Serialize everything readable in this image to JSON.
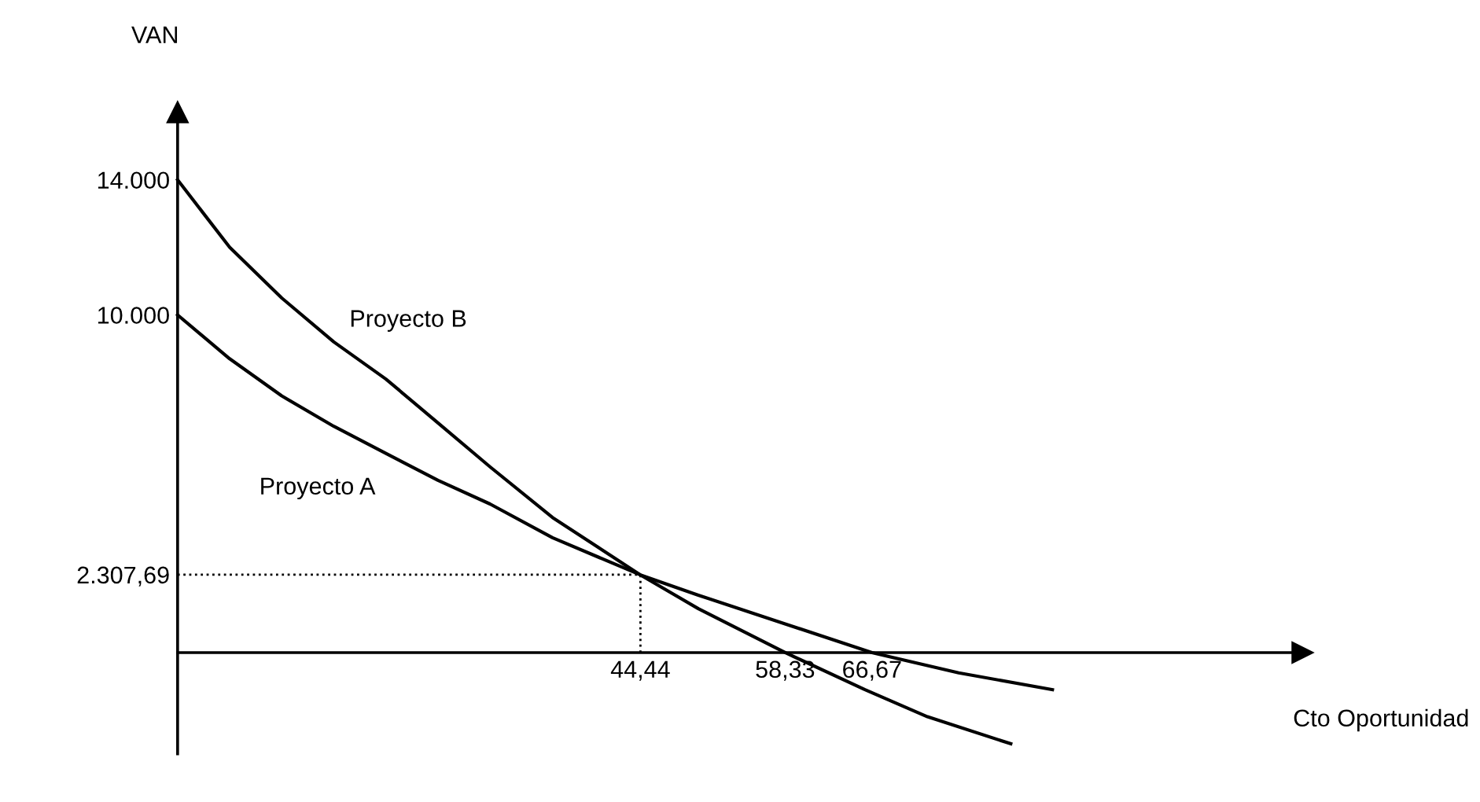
{
  "chart_data": {
    "type": "line",
    "xlabel": "Cto Oportunidad",
    "ylabel": "VAN",
    "xlim": [
      0,
      108
    ],
    "ylim": [
      -3000,
      16000
    ],
    "xticks": [
      {
        "value": 44.44,
        "label": "44,44"
      },
      {
        "value": 58.33,
        "label": "58,33"
      },
      {
        "value": 66.67,
        "label": "66,67"
      }
    ],
    "yticks": [
      {
        "value": 2307.69,
        "label": "2.307,69"
      },
      {
        "value": 10000,
        "label": "10.000"
      },
      {
        "value": 14000,
        "label": "14.000"
      }
    ],
    "series": [
      {
        "name": "Proyecto A",
        "color": "#000000",
        "x": [
          0,
          5,
          10,
          15,
          20,
          25,
          30,
          36,
          44.44,
          50,
          58.33,
          66.67,
          75,
          84
        ],
        "values": [
          10000,
          8700,
          7600,
          6700,
          5900,
          5100,
          4400,
          3400,
          2300,
          1700,
          850,
          0,
          -600,
          -1100
        ]
      },
      {
        "name": "Proyecto B",
        "color": "#000000",
        "x": [
          0,
          5,
          10,
          15,
          20,
          25,
          30,
          36,
          44.44,
          50,
          58.33,
          66,
          72,
          80
        ],
        "values": [
          14000,
          12000,
          10500,
          9200,
          8100,
          6800,
          5500,
          4000,
          2300,
          1300,
          0,
          -1100,
          -1900,
          -2700
        ]
      }
    ],
    "ref_lines": [
      {
        "axis": "y",
        "value": 2307.69,
        "line_style": "dotted",
        "color": "#000000"
      },
      {
        "axis": "x",
        "value": 44.44,
        "line_style": "dotted",
        "color": "#000000"
      }
    ],
    "grid": false,
    "legend": false,
    "marker": "none",
    "line_style": "solid"
  }
}
